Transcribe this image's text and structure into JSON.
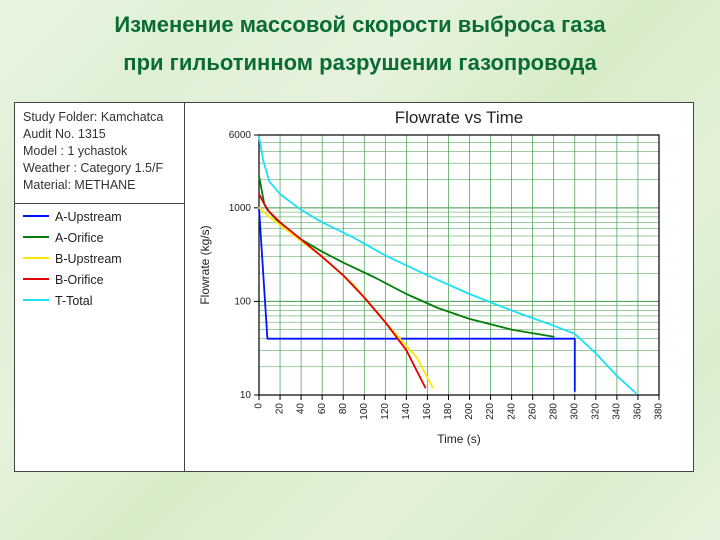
{
  "page": {
    "title_line1": "Изменение массовой скорости выброса газа",
    "title_line2": "при гильотинном разрушении газопровода",
    "title_color": "#0b6b36",
    "background_gradient": [
      "#e9f4e0",
      "#dff0d6",
      "#d7ecc9",
      "#e7f3dd"
    ]
  },
  "sidebar": {
    "meta_lines": [
      "Study Folder: Kamchatca",
      "Audit No. 1315",
      "Model : 1 ychastok",
      "Weather : Category 1.5/F",
      "Material: METHANE"
    ],
    "legend": [
      {
        "label": "A-Upstream",
        "color": "#0014ff"
      },
      {
        "label": "A-Orifice",
        "color": "#047d0a"
      },
      {
        "label": "B-Upstream",
        "color": "#ffe600"
      },
      {
        "label": "B-Orifice",
        "color": "#e20000"
      },
      {
        "label": "T-Total",
        "color": "#1de0f5"
      }
    ]
  },
  "chart": {
    "title": "Flowrate vs Time",
    "title_fontsize": 17,
    "xlabel": "Time (s)",
    "ylabel": "Flowrate (kg/s)",
    "axis_fontsize": 12,
    "tick_fontsize": 10,
    "background_color": "#ffffff",
    "grid_color": "#3f9b47",
    "grid_thin_color": "#3f9b47",
    "axis_color": "#000000",
    "x": {
      "scale": "linear",
      "min": 0,
      "max": 380,
      "tick_step": 20
    },
    "y": {
      "scale": "log",
      "min": 10,
      "max": 6000,
      "majors": [
        10,
        100,
        1000,
        6000
      ],
      "label_ticks": [
        10,
        100,
        1000,
        6000
      ]
    },
    "line_width": 1.8,
    "series": [
      {
        "name": "A-Upstream",
        "color": "#0014ff",
        "points": [
          [
            0,
            1000
          ],
          [
            8,
            40
          ],
          [
            20,
            40
          ],
          [
            60,
            40
          ],
          [
            120,
            40
          ],
          [
            200,
            40
          ],
          [
            280,
            40
          ],
          [
            300,
            40
          ],
          [
            300,
            11
          ]
        ]
      },
      {
        "name": "A-Orifice",
        "color": "#047d0a",
        "points": [
          [
            0,
            2200
          ],
          [
            5,
            1100
          ],
          [
            10,
            900
          ],
          [
            20,
            680
          ],
          [
            40,
            460
          ],
          [
            60,
            340
          ],
          [
            80,
            260
          ],
          [
            110,
            180
          ],
          [
            140,
            120
          ],
          [
            170,
            85
          ],
          [
            200,
            65
          ],
          [
            240,
            50
          ],
          [
            280,
            42
          ]
        ]
      },
      {
        "name": "B-Upstream",
        "color": "#ffe600",
        "points": [
          [
            0,
            1000
          ],
          [
            10,
            800
          ],
          [
            30,
            540
          ],
          [
            60,
            300
          ],
          [
            90,
            150
          ],
          [
            120,
            60
          ],
          [
            150,
            25
          ],
          [
            165,
            12
          ]
        ]
      },
      {
        "name": "B-Orifice",
        "color": "#e20000",
        "points": [
          [
            0,
            1400
          ],
          [
            8,
            950
          ],
          [
            20,
            700
          ],
          [
            40,
            460
          ],
          [
            60,
            300
          ],
          [
            80,
            190
          ],
          [
            100,
            110
          ],
          [
            120,
            60
          ],
          [
            140,
            30
          ],
          [
            158,
            12
          ]
        ]
      },
      {
        "name": "T-Total",
        "color": "#1de0f5",
        "points": [
          [
            0,
            5800
          ],
          [
            4,
            3200
          ],
          [
            10,
            1900
          ],
          [
            20,
            1400
          ],
          [
            40,
            950
          ],
          [
            60,
            700
          ],
          [
            90,
            480
          ],
          [
            120,
            310
          ],
          [
            160,
            190
          ],
          [
            200,
            120
          ],
          [
            240,
            80
          ],
          [
            280,
            55
          ],
          [
            300,
            45
          ],
          [
            320,
            28
          ],
          [
            340,
            16
          ],
          [
            358,
            10.5
          ]
        ]
      }
    ]
  }
}
